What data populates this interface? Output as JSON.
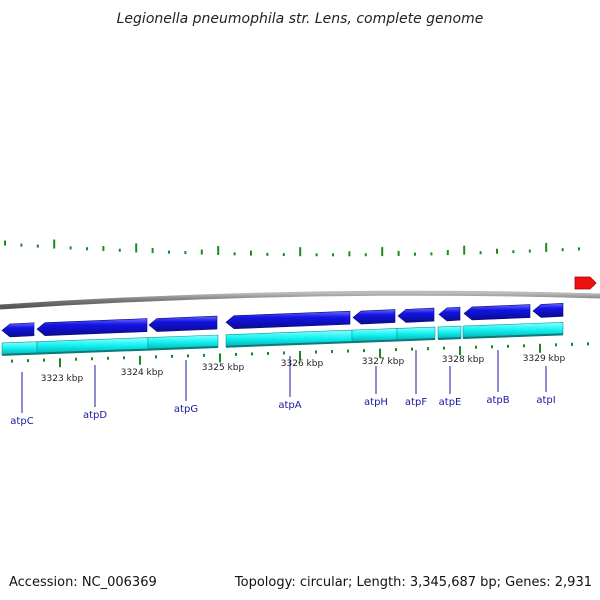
{
  "title": "Legionella pneumophila str. Lens, complete genome",
  "footer": {
    "accession": "Accession: NC_006369",
    "summary": "Topology: circular; Length: 3,345,687 bp; Genes: 2,931"
  },
  "colors": {
    "backbone": "#8a8a8a",
    "forward_gene": "#1414e6",
    "reverse_gene": "#10f0f0",
    "ticks": "#1a8a1a",
    "label_line": "#1a1aa0",
    "marker": "#ee1111"
  },
  "scale_ticks": [
    {
      "label": "3323 kbp"
    },
    {
      "label": "3324 kbp"
    },
    {
      "label": "3325 kbp"
    },
    {
      "label": "3326 kbp"
    },
    {
      "label": "3327 kbp"
    },
    {
      "label": "3328 kbp"
    },
    {
      "label": "3329 kbp"
    }
  ],
  "genes": [
    {
      "name": "atpC"
    },
    {
      "name": "atpD"
    },
    {
      "name": "atpG"
    },
    {
      "name": "atpA"
    },
    {
      "name": "atpH"
    },
    {
      "name": "atpF"
    },
    {
      "name": "atpE"
    },
    {
      "name": "atpB"
    },
    {
      "name": "atpI"
    }
  ],
  "marker_icon": "red-arrow-icon"
}
